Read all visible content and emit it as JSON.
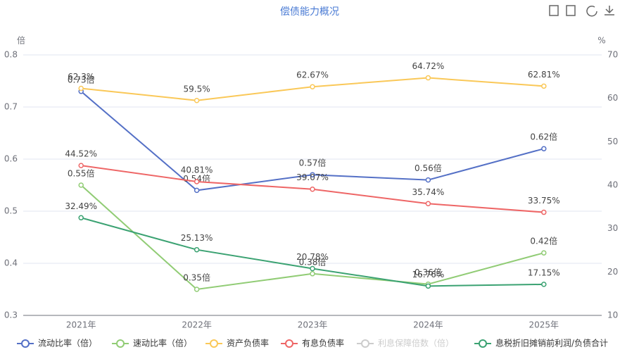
{
  "chart_data": {
    "type": "line",
    "title": "偿债能力概况",
    "y_label": "倍",
    "y2_label": "%",
    "categories": [
      "2021年",
      "2022年",
      "2023年",
      "2024年",
      "2025年"
    ],
    "ylim": [
      0.3,
      0.8
    ],
    "yticks": [
      0.3,
      0.4,
      0.5,
      0.6,
      0.7,
      0.8
    ],
    "y2lim": [
      10,
      70
    ],
    "y2ticks": [
      10,
      20,
      30,
      40,
      50,
      60,
      70
    ],
    "grid": true,
    "legend": "bottom",
    "series": [
      {
        "name": "流动比率（倍）",
        "color": "#5470c6",
        "values": [
          0.73,
          0.54,
          0.57,
          0.56,
          0.62
        ],
        "value_labels": [
          "0.73倍",
          "0.54倍",
          "0.57倍",
          "0.56倍",
          "0.62倍"
        ]
      },
      {
        "name": "速动比率（倍）",
        "color": "#91cc75",
        "values": [
          0.55,
          0.35,
          0.38,
          0.36,
          0.42
        ],
        "value_labels": [
          "0.55倍",
          "0.35倍",
          "0.38倍",
          "0.36倍",
          "0.42倍"
        ]
      },
      {
        "name": "资产负债率",
        "color": "#fac858",
        "axis": "y2",
        "values": [
          62.3,
          59.5,
          62.67,
          64.72,
          62.81
        ],
        "value_labels": [
          "62.3%",
          "59.5%",
          "62.67%",
          "64.72%",
          "62.81%"
        ]
      },
      {
        "name": "有息负债率",
        "color": "#ee6666",
        "axis": "y2",
        "values": [
          44.52,
          40.81,
          39.07,
          35.74,
          33.75
        ],
        "value_labels": [
          "44.52%",
          "40.81%",
          "39.07%",
          "35.74%",
          "33.75%"
        ]
      },
      {
        "name": "利息保障倍数（倍）",
        "color": "#cccccc",
        "visible": false,
        "values": [
          null,
          null,
          null,
          null,
          null
        ]
      },
      {
        "name": "息税折旧摊销前利润/负债合计",
        "color": "#3ba272",
        "axis": "y2",
        "values": [
          32.49,
          25.13,
          20.78,
          16.76,
          17.15
        ],
        "value_labels": [
          "32.49%",
          "25.13%",
          "20.78%",
          "16.76%",
          "17.15%"
        ]
      }
    ]
  }
}
